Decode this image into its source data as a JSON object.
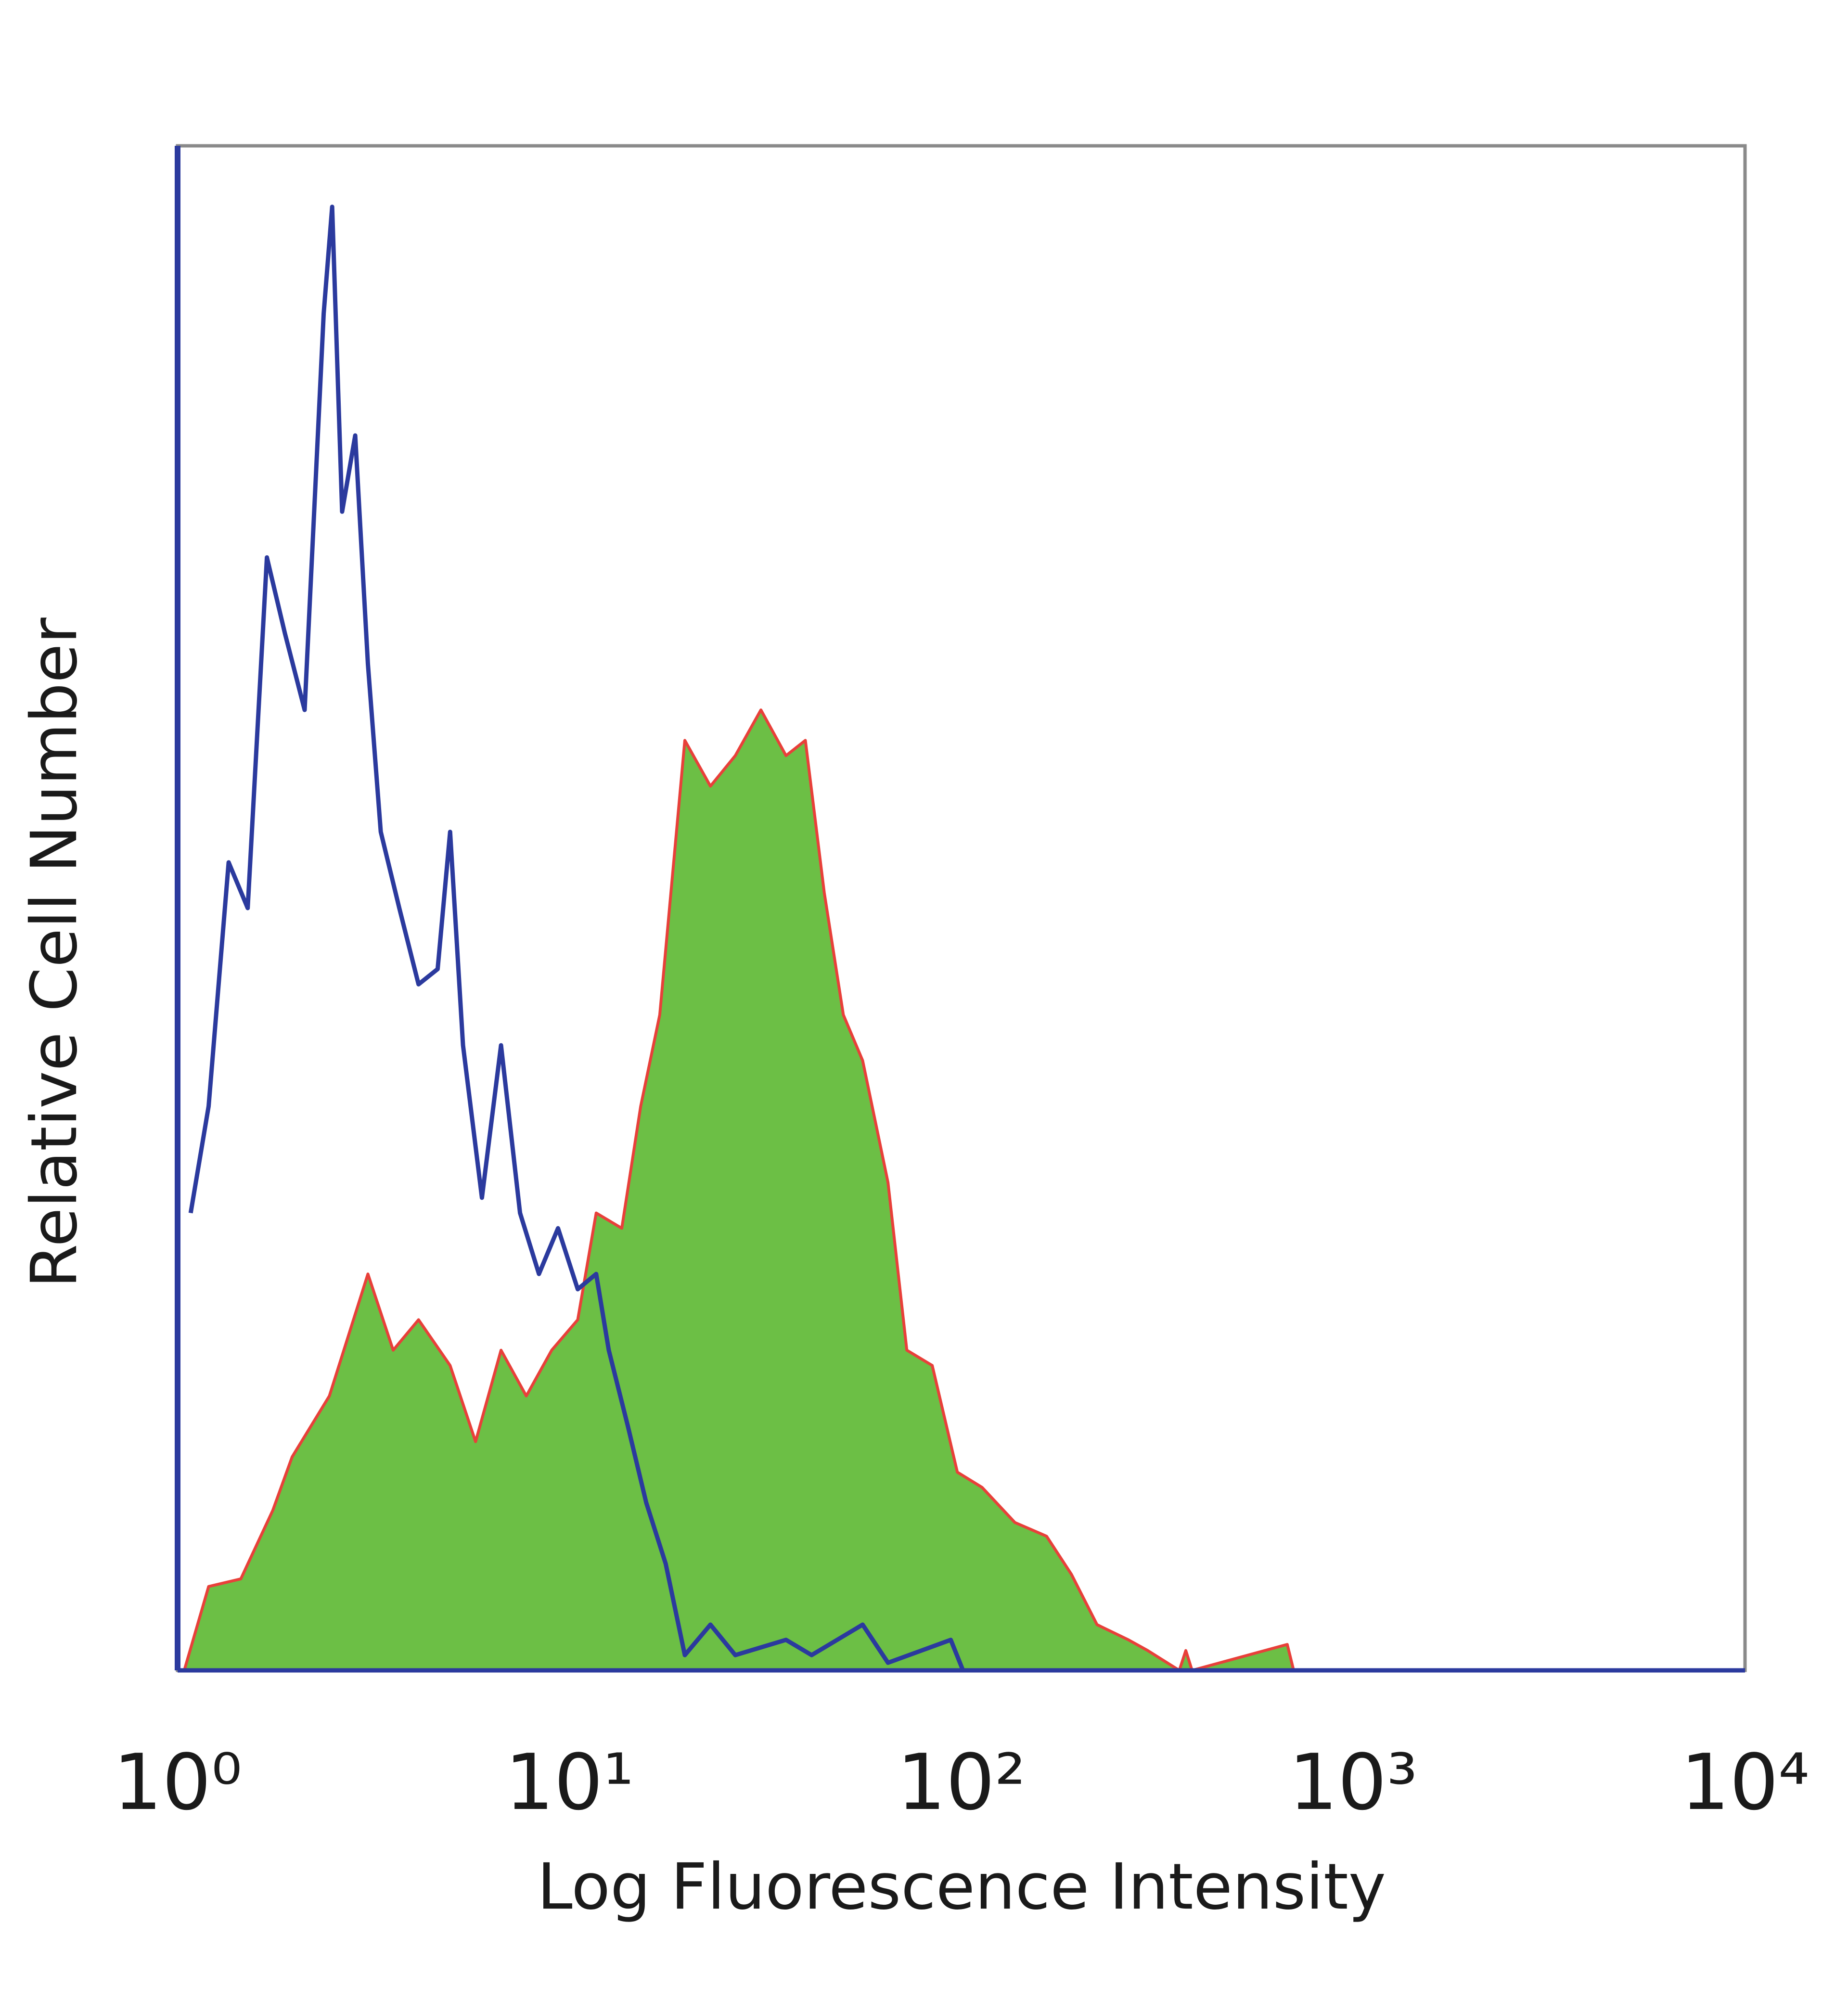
{
  "chart_data": {
    "type": "histogram-overlay",
    "x_label": "Log Fluorescence Intensity",
    "y_label": "Relative Cell Number",
    "xscale": "log",
    "xlim": [
      1,
      10000
    ],
    "ylim": [
      0,
      100
    ],
    "xticks": [
      {
        "value": 1,
        "label": "10⁰"
      },
      {
        "value": 10,
        "label": "10¹"
      },
      {
        "value": 100,
        "label": "10²"
      },
      {
        "value": 1000,
        "label": "10³"
      },
      {
        "value": 10000,
        "label": "10⁴"
      }
    ],
    "grid": false,
    "series": [
      {
        "color": "#2b3a9e",
        "fill": false,
        "x": [
          1.08,
          1.2,
          1.35,
          1.51,
          1.69,
          1.88,
          2.11,
          2.36,
          2.48,
          2.63,
          2.84,
          3.06,
          3.3,
          3.68,
          4.12,
          4.61,
          4.96,
          5.35,
          5.98,
          6.69,
          7.48,
          8.36,
          9.35,
          10.5,
          11.7,
          12.6,
          14.1,
          15.7,
          17.6,
          19.7,
          22.9,
          26.5,
          35.7,
          41.5,
          56,
          65,
          94,
          101
        ],
        "values": [
          30,
          37,
          53,
          50,
          73,
          68,
          63,
          89,
          96,
          76,
          81,
          66,
          55,
          50,
          45,
          46,
          55,
          41,
          31,
          41,
          30,
          26,
          29,
          25,
          26,
          21,
          16,
          11,
          7,
          1,
          3,
          1,
          2,
          1,
          3,
          0.5,
          2,
          0
        ]
      },
      {
        "color": "#6cbf45",
        "edge_color": "#e8403a",
        "fill": true,
        "x": [
          1.04,
          1.2,
          1.45,
          1.75,
          1.96,
          2.44,
          3.06,
          3.55,
          4.12,
          4.96,
          5.76,
          6.69,
          7.76,
          9.01,
          10.5,
          11.7,
          13.6,
          15.2,
          17,
          19.7,
          22.9,
          26.5,
          30.8,
          35.7,
          40,
          44.7,
          50,
          56,
          65,
          72.6,
          84.3,
          97.7,
          113,
          137,
          165,
          191,
          222,
          267,
          299,
          360,
          374,
          388,
          679,
          705
        ],
        "values": [
          0,
          5.5,
          6,
          10.5,
          14,
          18,
          26,
          21,
          23,
          20,
          15,
          21,
          18,
          21,
          23,
          30,
          29,
          37,
          43,
          61,
          58,
          60,
          63,
          60,
          61,
          51,
          43,
          40,
          32,
          21,
          20,
          13,
          12,
          9.7,
          8.8,
          6.3,
          3,
          2,
          1.3,
          0,
          1.3,
          0,
          1.7,
          0
        ]
      }
    ]
  }
}
